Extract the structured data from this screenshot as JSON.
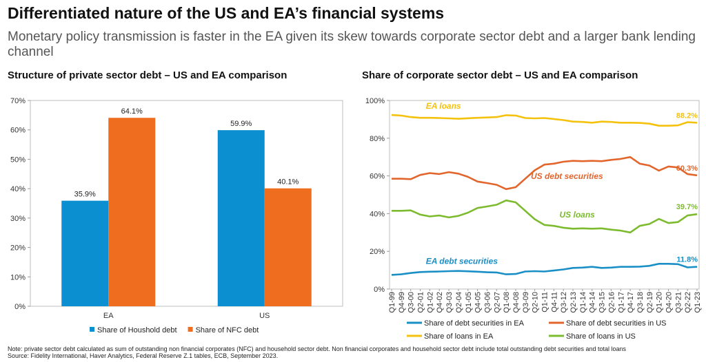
{
  "header": {
    "title": "Differentiated nature of the US and EA’s financial systems",
    "subtitle": "Monetary policy transmission is faster in the EA given its skew towards corporate sector debt and a larger bank lending channel"
  },
  "footer": {
    "note": "Note: private sector debt calculated as sum of outstanding non financial corporates (NFC) and household sector debt. Non financial corporates and household sector debt include total outstanding debt securities and total loans",
    "source": "Source: Fidelity International, Haver Analytics, Federal Reserve Z.1 tables, ECB, September 2023."
  },
  "chart_data": [
    {
      "type": "bar",
      "title": "Structure of private sector debt – US and EA comparison",
      "categories": [
        "EA",
        "US"
      ],
      "series": [
        {
          "name": "Share of Houshold debt",
          "values": [
            35.9,
            59.9
          ],
          "labels": [
            "35.9%",
            "59.9%"
          ],
          "color": "#0b8fd0"
        },
        {
          "name": "Share of NFC debt",
          "values": [
            64.1,
            40.1
          ],
          "labels": [
            "64.1%",
            "40.1%"
          ],
          "color": "#ee6d1e"
        }
      ],
      "ylim": [
        0,
        70
      ],
      "yticks": [
        "0%",
        "10%",
        "20%",
        "30%",
        "40%",
        "50%",
        "60%",
        "70%"
      ],
      "grid": false,
      "legend": "bottom"
    },
    {
      "type": "line",
      "title": "Share of corporate sector debt – US and EA comparison",
      "x_labels": [
        "Q1-99",
        "Q4-99",
        "Q3-00",
        "Q2-01",
        "Q1-02",
        "Q4-02",
        "Q3-03",
        "Q2-04",
        "Q1-05",
        "Q4-05",
        "Q3-06",
        "Q2-07",
        "Q1-08",
        "Q4-08",
        "Q3-09",
        "Q2-10",
        "Q1-11",
        "Q4-11",
        "Q3-12",
        "Q2-13",
        "Q1-14",
        "Q4-14",
        "Q3-15",
        "Q2-16",
        "Q1-17",
        "Q4-17",
        "Q3-18",
        "Q2-19",
        "Q1-20",
        "Q4-20",
        "Q3-21",
        "Q2-22",
        "Q1-23"
      ],
      "ylim": [
        0,
        100
      ],
      "yticks": [
        "0%",
        "20%",
        "40%",
        "60%",
        "80%",
        "100%"
      ],
      "grid": false,
      "legend": "bottom",
      "series": [
        {
          "name": "Share of debt securities in EA",
          "label": "EA debt securities",
          "end_label": "11.8%",
          "color": "#1a8fc6",
          "values": [
            7.5,
            7.8,
            8.5,
            9.0,
            9.2,
            9.3,
            9.5,
            9.6,
            9.4,
            9.2,
            8.9,
            8.8,
            7.8,
            8.0,
            9.3,
            9.5,
            9.3,
            9.8,
            10.4,
            11.2,
            11.4,
            11.8,
            11.2,
            11.4,
            11.8,
            11.8,
            11.9,
            12.3,
            13.4,
            13.4,
            13.2,
            11.5,
            11.8
          ]
        },
        {
          "name": "Share of debt securities in US",
          "label": "US debt securities",
          "end_label": "60.3%",
          "color": "#e2652c",
          "values": [
            58.5,
            58.5,
            58.3,
            60.5,
            61.5,
            61.0,
            62.0,
            61.2,
            59.5,
            57.0,
            56.2,
            55.3,
            53.0,
            54.0,
            58.5,
            63.0,
            66.0,
            66.5,
            67.5,
            68.0,
            67.8,
            68.0,
            67.8,
            68.5,
            69.0,
            70.0,
            66.5,
            65.5,
            62.8,
            65.0,
            64.5,
            61.0,
            60.3
          ]
        },
        {
          "name": "Share of loans in EA",
          "label": "EA loans",
          "end_label": "88.2%",
          "color": "#f4c20d",
          "values": [
            92.3,
            92.0,
            91.2,
            90.8,
            90.8,
            90.7,
            90.5,
            90.3,
            90.6,
            90.8,
            91.0,
            91.2,
            92.2,
            92.0,
            90.7,
            90.5,
            90.7,
            90.2,
            89.6,
            88.8,
            88.6,
            88.2,
            88.8,
            88.6,
            88.2,
            88.2,
            88.1,
            87.7,
            86.6,
            86.6,
            86.8,
            88.5,
            88.2
          ]
        },
        {
          "name": "Share of loans in US",
          "label": "US loans",
          "end_label": "39.7%",
          "color": "#7dbb2e",
          "values": [
            41.5,
            41.5,
            41.7,
            39.5,
            38.5,
            39.0,
            38.0,
            38.8,
            40.5,
            43.0,
            43.8,
            44.7,
            47.0,
            46.0,
            41.5,
            37.0,
            34.0,
            33.5,
            32.5,
            32.0,
            32.2,
            32.0,
            32.2,
            31.5,
            31.0,
            30.0,
            33.5,
            34.5,
            37.2,
            35.0,
            35.5,
            39.0,
            39.7
          ]
        }
      ]
    }
  ]
}
